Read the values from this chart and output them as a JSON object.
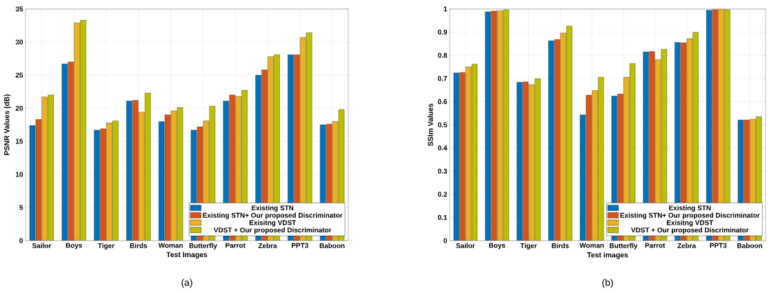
{
  "chart_data": [
    {
      "type": "bar",
      "categories": [
        "Sailor",
        "Boys",
        "Tiger",
        "Birds",
        "Woman",
        "Butterfly",
        "Parrot",
        "Zebra",
        "PPT3",
        "Baboon"
      ],
      "xlabel": "Test Images",
      "ylabel": "PSNR Values (dB)",
      "ylim": [
        0,
        35
      ],
      "yticks": [
        0,
        5,
        10,
        15,
        20,
        25,
        30,
        35
      ],
      "grid": true,
      "legend": "bottom right",
      "annotations": [
        "(a)"
      ],
      "series": [
        {
          "name": "Existing STN",
          "color": "#0072bd",
          "values": [
            17.4,
            26.7,
            16.7,
            21.1,
            18.0,
            16.7,
            21.1,
            25.0,
            28.1,
            17.5
          ]
        },
        {
          "name": "Existing STN+ Our proposed Discriminator",
          "color": "#d95319",
          "values": [
            18.3,
            27.0,
            16.9,
            21.2,
            19.0,
            17.2,
            22.0,
            25.8,
            28.1,
            17.6
          ]
        },
        {
          "name": "Exisitng VDST",
          "color": "#edb120",
          "values": [
            21.7,
            32.9,
            17.8,
            19.4,
            19.6,
            18.1,
            21.8,
            27.8,
            30.7,
            18.0
          ]
        },
        {
          "name": "VDST + Our proposed Discriminator",
          "color": "#bdbf00",
          "values": [
            22.0,
            33.3,
            18.1,
            22.3,
            20.1,
            20.3,
            22.7,
            28.1,
            31.4,
            19.8
          ]
        }
      ]
    },
    {
      "type": "bar",
      "categories": [
        "Sailor",
        "Boys",
        "Tiger",
        "Birds",
        "Woman",
        "Butterfly",
        "Parrot",
        "Zebra",
        "PPT3",
        "Baboon"
      ],
      "xlabel": "Test images",
      "ylabel": "SSIm Values",
      "ylim": [
        0,
        1
      ],
      "yticks": [
        0,
        0.1,
        0.2,
        0.3,
        0.4,
        0.5,
        0.6,
        0.7,
        0.8,
        0.9,
        1
      ],
      "grid": true,
      "legend": "bottom right",
      "annotations": [
        "(b)"
      ],
      "series": [
        {
          "name": "Existing STN",
          "color": "#0072bd",
          "values": [
            0.724,
            0.988,
            0.684,
            0.863,
            0.543,
            0.624,
            0.815,
            0.856,
            0.995,
            0.521
          ]
        },
        {
          "name": "Existing STN+ Our proposed Discriminator",
          "color": "#d95319",
          "values": [
            0.726,
            0.991,
            0.685,
            0.868,
            0.628,
            0.633,
            0.816,
            0.854,
            0.997,
            0.521
          ]
        },
        {
          "name": "Exisitng VDST",
          "color": "#edb120",
          "values": [
            0.75,
            0.992,
            0.673,
            0.896,
            0.648,
            0.705,
            0.781,
            0.872,
            1.0,
            0.524
          ]
        },
        {
          "name": "VDST + Our proposed Discriminator",
          "color": "#bdbf00",
          "values": [
            0.762,
            0.996,
            0.699,
            0.926,
            0.705,
            0.764,
            0.826,
            0.899,
            0.997,
            0.535
          ]
        }
      ]
    }
  ]
}
